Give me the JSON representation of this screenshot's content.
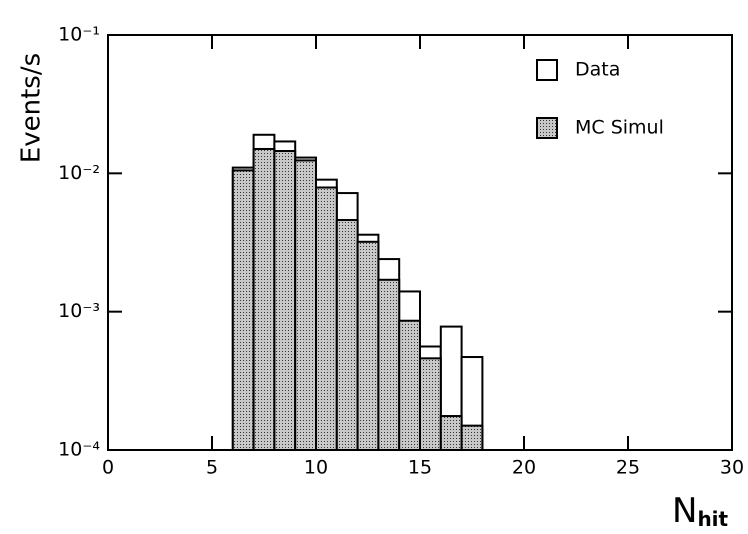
{
  "chart_data": {
    "type": "histogram",
    "y_label": "Events/s",
    "x_label": {
      "main": "N",
      "sub": "hit"
    },
    "bins": [
      6,
      7,
      8,
      9,
      10,
      11,
      12,
      13,
      14,
      15,
      16,
      17,
      18
    ],
    "series": [
      {
        "name": "Data",
        "color": "#ffffff",
        "values": [
          0.011,
          0.019,
          0.017,
          0.013,
          0.009,
          0.0072,
          0.0036,
          0.0024,
          0.0014,
          0.00056,
          0.00078,
          0.00047
        ]
      },
      {
        "name": "MC Simul",
        "color": "#c8c8c8",
        "values": [
          0.0105,
          0.015,
          0.0145,
          0.0124,
          0.0079,
          0.0046,
          0.0032,
          0.0017,
          0.00086,
          0.00046,
          0.000176,
          0.00015
        ]
      }
    ],
    "xlim": [
      0,
      30
    ],
    "xticks": [
      0,
      5,
      10,
      15,
      20,
      25,
      30
    ],
    "ylim": [
      0.0001,
      0.1
    ],
    "log_y": true,
    "yticks": [
      {
        "value": 0.0001,
        "label": "10⁻⁴"
      },
      {
        "value": 0.001,
        "label": "10⁻³"
      },
      {
        "value": 0.01,
        "label": "10⁻²"
      },
      {
        "value": 0.1,
        "label": "10⁻¹"
      }
    ],
    "legend": "top-right"
  }
}
